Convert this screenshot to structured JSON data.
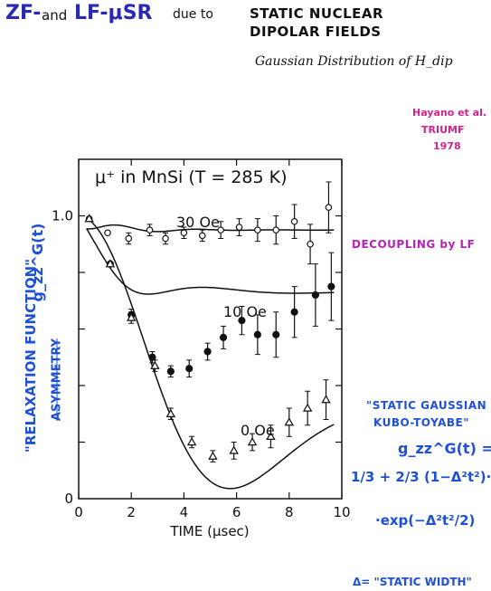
{
  "title": {
    "zf": "ZF-",
    "and": "and",
    "lf": "LF-μSR",
    "due": "due to",
    "line1": "STATIC NUCLEAR",
    "line2": "DIPOLAR FIELDS"
  },
  "subtitle": "Gaussian Distribution of H_dip",
  "reference": [
    "Hayano et al.",
    "TRIUMF",
    "1978"
  ],
  "annotations": {
    "decoupling": "DECOUPLING by LF",
    "relaxation": "\"RELAXATION FUNCTION\"",
    "asymmetry": "ASYMMETRY",
    "kt_title1": "\"STATIC GAUSSIAN",
    "kt_title2": "KUBO-TOYABE\"",
    "kt_g": "g_zz^G(t) =",
    "kt_formula1": "1/3 + 2/3 (1−Δ²t²)·",
    "kt_formula2": "·exp(−Δ²t²/2)",
    "static_width": "Δ= \"STATIC WIDTH\""
  },
  "colors": {
    "blue_ink": "#1f50d8",
    "title_blue": "#2a2ab0",
    "magenta": "#d4238c",
    "purple": "#b822b8"
  },
  "chart_data": {
    "type": "scatter",
    "title": "μ⁺ in MnSi (T = 285 K)",
    "xlabel": "TIME (μsec)",
    "ylabel": "g_zz^G(t)",
    "xlim": [
      0,
      10
    ],
    "ylim": [
      0,
      1.2
    ],
    "xticks": [
      0,
      2,
      4,
      6,
      8,
      10
    ],
    "yticks": [
      {
        "v": 1.0,
        "label": "1.0"
      },
      {
        "v": 0.0,
        "label": "0"
      }
    ],
    "series": [
      {
        "name": "30 Oe",
        "marker": "open-circle",
        "x": [
          0.4,
          1.1,
          1.9,
          2.7,
          3.3,
          4.0,
          4.7,
          5.4,
          6.1,
          6.8,
          7.5,
          8.2,
          8.8,
          9.5
        ],
        "y": [
          0.99,
          0.94,
          0.92,
          0.95,
          0.92,
          0.94,
          0.93,
          0.95,
          0.96,
          0.95,
          0.95,
          0.98,
          0.9,
          1.03
        ],
        "err": [
          0.01,
          0.01,
          0.02,
          0.02,
          0.02,
          0.02,
          0.02,
          0.03,
          0.03,
          0.04,
          0.05,
          0.06,
          0.07,
          0.09
        ]
      },
      {
        "name": "10 Oe",
        "marker": "filled-circle",
        "x": [
          1.2,
          2.0,
          2.8,
          3.5,
          4.2,
          4.9,
          5.5,
          6.2,
          6.8,
          7.5,
          8.2,
          9.0,
          9.6
        ],
        "y": [
          0.83,
          0.65,
          0.5,
          0.45,
          0.46,
          0.52,
          0.57,
          0.63,
          0.58,
          0.58,
          0.66,
          0.72,
          0.75
        ],
        "err": [
          0.01,
          0.02,
          0.02,
          0.02,
          0.03,
          0.03,
          0.04,
          0.05,
          0.07,
          0.08,
          0.09,
          0.11,
          0.12
        ]
      },
      {
        "name": "0 Oe",
        "marker": "open-triangle",
        "x": [
          0.4,
          1.2,
          2.0,
          2.9,
          3.5,
          4.3,
          5.1,
          5.9,
          6.6,
          7.3,
          8.0,
          8.7,
          9.4
        ],
        "y": [
          0.99,
          0.83,
          0.64,
          0.47,
          0.3,
          0.2,
          0.15,
          0.17,
          0.2,
          0.22,
          0.27,
          0.32,
          0.35
        ],
        "err": [
          0.01,
          0.01,
          0.02,
          0.02,
          0.02,
          0.02,
          0.02,
          0.03,
          0.03,
          0.04,
          0.05,
          0.06,
          0.07
        ]
      }
    ]
  }
}
